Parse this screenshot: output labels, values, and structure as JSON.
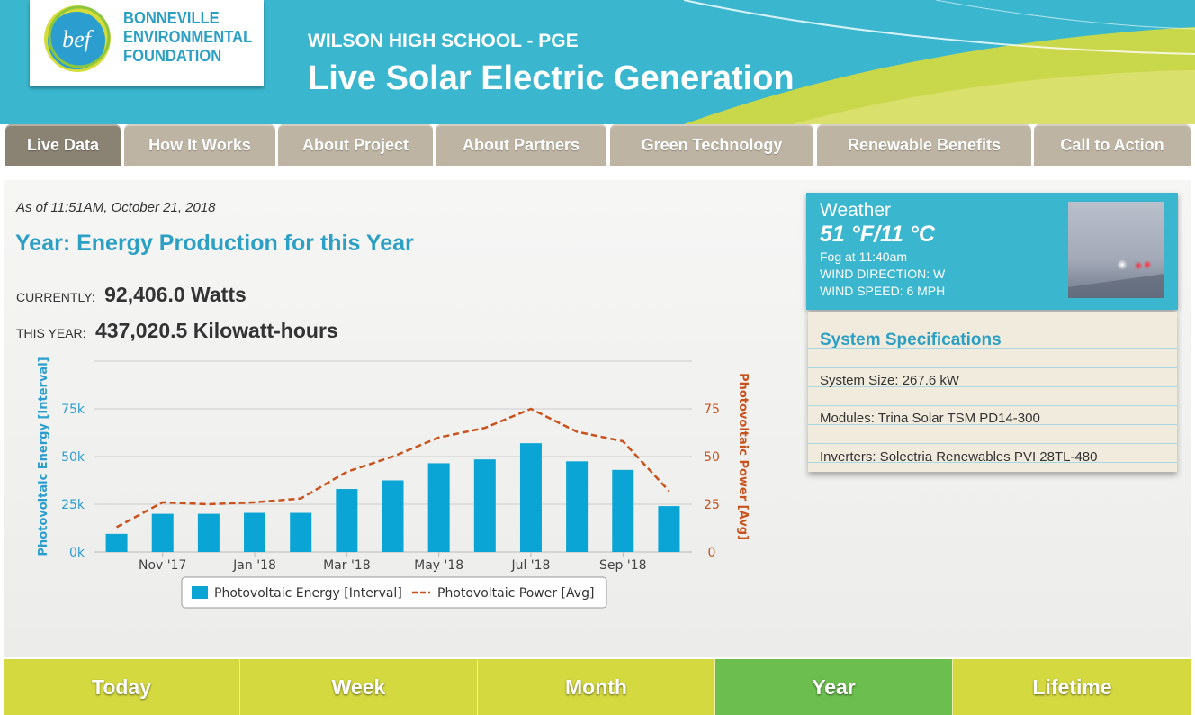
{
  "header": {
    "logo_lines": [
      "BONNEVILLE",
      "ENVIRONMENTAL",
      "FOUNDATION"
    ],
    "logo_mark": "bef",
    "subtitle": "WILSON HIGH SCHOOL - PGE",
    "title": "Live Solar Electric Generation"
  },
  "nav": {
    "tabs": [
      {
        "label": "Live Data",
        "active": true
      },
      {
        "label": "How It Works"
      },
      {
        "label": "About Project"
      },
      {
        "label": "About Partners"
      },
      {
        "label": "Green Technology"
      },
      {
        "label": "Renewable Benefits"
      },
      {
        "label": "Call to Action"
      }
    ]
  },
  "main": {
    "as_of": "As of 11:51AM, October 21, 2018",
    "heading": "Year: Energy Production for this Year",
    "currently_label": "CURRENTLY:",
    "currently_value": "92,406.0 Watts",
    "this_year_label": "THIS YEAR:",
    "this_year_value": "437,020.5 Kilowatt-hours"
  },
  "chart_data": {
    "type": "bar",
    "categories": [
      "Oct '17",
      "Nov '17",
      "Dec '17",
      "Jan '18",
      "Feb '18",
      "Mar '18",
      "Apr '18",
      "May '18",
      "Jun '18",
      "Jul '18",
      "Aug '18",
      "Sep '18",
      "Oct '18"
    ],
    "x_tick_labels": [
      "Nov '17",
      "Jan '18",
      "Mar '18",
      "May '18",
      "Jul '18",
      "Sep '18"
    ],
    "series": [
      {
        "name": "Photovoltaic Energy [Interval]",
        "type": "bar",
        "axis": "left",
        "color": "#0aa5d4",
        "values": [
          9500,
          20000,
          20000,
          20500,
          20500,
          33000,
          37500,
          46500,
          48500,
          57000,
          47500,
          43000,
          24000
        ]
      },
      {
        "name": "Photovoltaic Power [Avg]",
        "type": "line",
        "axis": "right",
        "color": "#c8511c",
        "dash": true,
        "values": [
          13,
          26,
          25,
          26,
          28,
          42,
          50,
          60,
          65,
          75,
          63,
          58,
          32
        ]
      }
    ],
    "ylabel_left": "Photovoltaic Energy [Interval]",
    "ylabel_right": "Photovoltaic Power [Avg]",
    "y_left_ticks": [
      "0k",
      "25k",
      "50k",
      "75k"
    ],
    "y_right_ticks": [
      "0",
      "25",
      "50",
      "75"
    ],
    "ylim_left": [
      0,
      100000
    ],
    "ylim_right": [
      0,
      100
    ],
    "grid": true,
    "legend_position": "bottom-center"
  },
  "weather": {
    "title": "Weather",
    "temp": "51 °F/11 °C",
    "condition": "Fog at 11:40am",
    "wind_direction": "WIND DIRECTION: W",
    "wind_speed": "WIND SPEED: 6 MPH",
    "photo_icon": "fog-weather-photo"
  },
  "specs": {
    "title": "System Specifications",
    "size": "System Size: 267.6 kW",
    "modules": "Modules: Trina Solar TSM PD14-300",
    "inverters": "Inverters: Solectria Renewables PVI 28TL-480"
  },
  "periods": {
    "tabs": [
      {
        "label": "Today"
      },
      {
        "label": "Week"
      },
      {
        "label": "Month"
      },
      {
        "label": "Year",
        "active": true
      },
      {
        "label": "Lifetime"
      }
    ]
  },
  "colors": {
    "brand_blue": "#3ab7cf",
    "heading_blue": "#2c9fc4",
    "tab_gray": "#bdb4a3",
    "tab_active": "#8a8273",
    "period_yellow": "#d4d940",
    "period_active": "#6cbe4f"
  }
}
